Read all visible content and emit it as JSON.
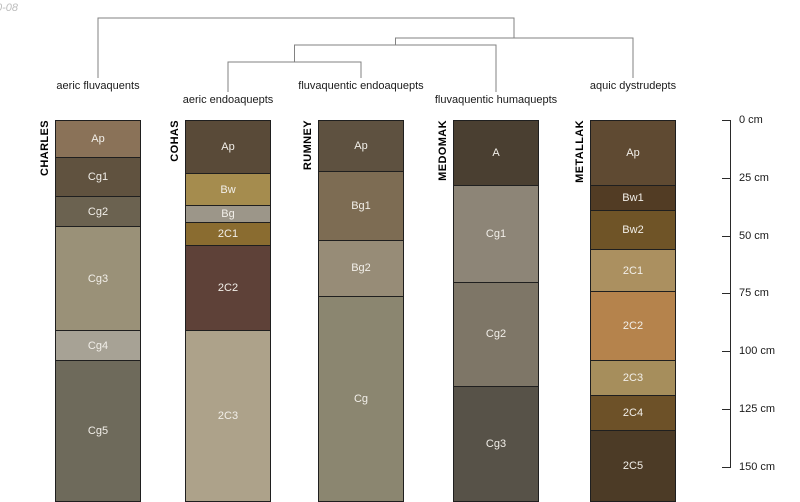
{
  "meta": {
    "watermark": "0-08"
  },
  "chart_data": {
    "type": "soil-profile-columns-with-dendrogram",
    "title": "",
    "depth_unit": "cm",
    "depth_axis": {
      "tick_labels": [
        "0 cm",
        "25 cm",
        "50 cm",
        "75 cm",
        "100 cm",
        "125 cm",
        "150 cm"
      ],
      "tick_values": [
        0,
        25,
        50,
        75,
        100,
        125,
        150
      ]
    },
    "dendrogram": {
      "leaf_order": [
        "aeric fluvaquents",
        "aeric endoaquepts",
        "fluvaquentic endoaquepts",
        "fluvaquentic humaquepts",
        "aquic dystrudepts"
      ],
      "topology": "(aeric fluvaquents,(((aeric endoaquepts,fluvaquentic endoaquepts),fluvaquentic humaquepts),aquic dystrudepts))",
      "line_color": "#828282"
    },
    "profiles": [
      {
        "series": "CHARLES",
        "classification": "aeric fluvaquents",
        "horizons": [
          {
            "name": "Ap",
            "top": 0,
            "bottom": 16,
            "color": "#8a7258"
          },
          {
            "name": "Cg1",
            "top": 16,
            "bottom": 33,
            "color": "#60523f"
          },
          {
            "name": "Cg2",
            "top": 33,
            "bottom": 46,
            "color": "#6b6250"
          },
          {
            "name": "Cg3",
            "top": 46,
            "bottom": 91,
            "color": "#9a9178"
          },
          {
            "name": "Cg4",
            "top": 91,
            "bottom": 104,
            "color": "#a7a295"
          },
          {
            "name": "Cg5",
            "top": 104,
            "bottom": 165,
            "color": "#6e6a5b"
          }
        ]
      },
      {
        "series": "COHAS",
        "classification": "aeric endoaquepts",
        "horizons": [
          {
            "name": "Ap",
            "top": 0,
            "bottom": 23,
            "color": "#594a38"
          },
          {
            "name": "Bw",
            "top": 23,
            "bottom": 37,
            "color": "#a58c4e"
          },
          {
            "name": "Bg",
            "top": 37,
            "bottom": 44,
            "color": "#9c9689"
          },
          {
            "name": "2C1",
            "top": 44,
            "bottom": 54,
            "color": "#8a6c30"
          },
          {
            "name": "2C2",
            "top": 54,
            "bottom": 91,
            "color": "#5e4138"
          },
          {
            "name": "2C3",
            "top": 91,
            "bottom": 165,
            "color": "#ada28a"
          }
        ]
      },
      {
        "series": "RUMNEY",
        "classification": "fluvaquentic endoaquepts",
        "horizons": [
          {
            "name": "Ap",
            "top": 0,
            "bottom": 22,
            "color": "#5e5140"
          },
          {
            "name": "Bg1",
            "top": 22,
            "bottom": 52,
            "color": "#7d6c53"
          },
          {
            "name": "Bg2",
            "top": 52,
            "bottom": 76,
            "color": "#978c77"
          },
          {
            "name": "Cg",
            "top": 76,
            "bottom": 165,
            "color": "#8b8670"
          }
        ]
      },
      {
        "series": "MEDOMAK",
        "classification": "fluvaquentic humaquepts",
        "horizons": [
          {
            "name": "A",
            "top": 0,
            "bottom": 28,
            "color": "#4a3f31"
          },
          {
            "name": "Cg1",
            "top": 28,
            "bottom": 70,
            "color": "#8d8577"
          },
          {
            "name": "Cg2",
            "top": 70,
            "bottom": 115,
            "color": "#7e7667"
          },
          {
            "name": "Cg3",
            "top": 115,
            "bottom": 165,
            "color": "#575248"
          }
        ]
      },
      {
        "series": "METALLAK",
        "classification": "aquic dystrudepts",
        "horizons": [
          {
            "name": "Ap",
            "top": 0,
            "bottom": 28,
            "color": "#5f4a32"
          },
          {
            "name": "Bw1",
            "top": 28,
            "bottom": 39,
            "color": "#523c24"
          },
          {
            "name": "Bw2",
            "top": 39,
            "bottom": 56,
            "color": "#6f5427"
          },
          {
            "name": "2C1",
            "top": 56,
            "bottom": 74,
            "color": "#ab9060"
          },
          {
            "name": "2C2",
            "top": 74,
            "bottom": 104,
            "color": "#b5834c"
          },
          {
            "name": "2C3",
            "top": 104,
            "bottom": 119,
            "color": "#a68e5c"
          },
          {
            "name": "2C4",
            "top": 119,
            "bottom": 134,
            "color": "#6d5128"
          },
          {
            "name": "2C5",
            "top": 134,
            "bottom": 165,
            "color": "#4c3b26"
          }
        ]
      }
    ]
  }
}
